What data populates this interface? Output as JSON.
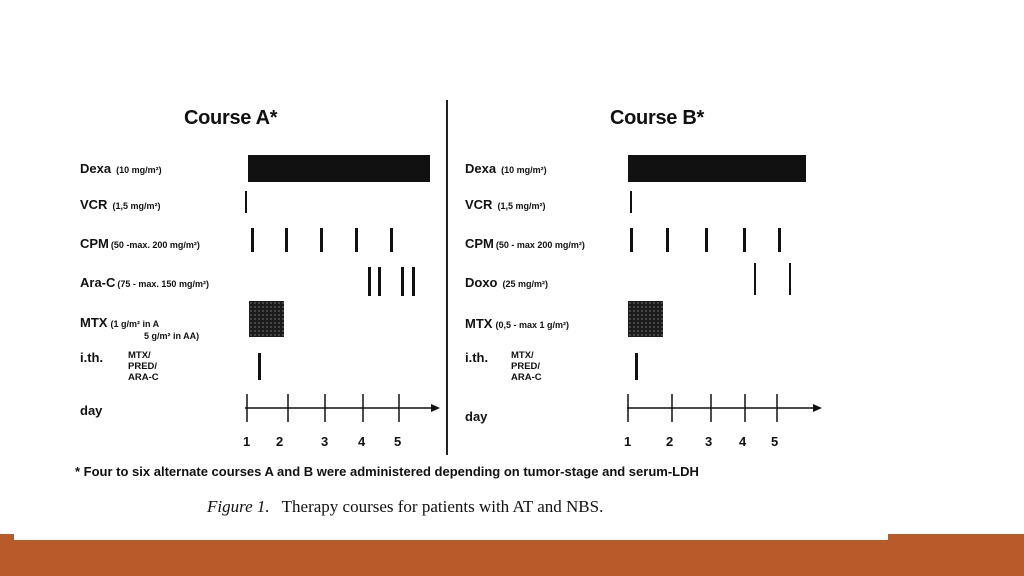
{
  "figure": {
    "footnote": "* Four to six alternate courses A and B were administered depending on tumor-stage and serum-LDH",
    "caption_label": "Figure 1.",
    "caption_text": "Therapy courses for patients with AT and NBS.",
    "day_label": "day",
    "day_ticks": [
      "1",
      "2",
      "3",
      "4",
      "5"
    ]
  },
  "course_a": {
    "title": "Course A*",
    "rows": [
      {
        "name": "Dexa",
        "dose": "(10 mg/m²)"
      },
      {
        "name": "VCR",
        "dose": "(1,5 mg/m²)"
      },
      {
        "name": "CPM",
        "dose": "(50 -max. 200 mg/m²)"
      },
      {
        "name": "Ara-C",
        "dose": "(75 - max. 150 mg/m²)"
      },
      {
        "name": "MTX",
        "dose": "(1 g/m² in A",
        "dose2": "5 g/m² in AA)"
      },
      {
        "name": "i.th.",
        "lines": [
          "MTX/",
          "PRED/",
          "ARA-C"
        ]
      }
    ]
  },
  "course_b": {
    "title": "Course B*",
    "rows": [
      {
        "name": "Dexa",
        "dose": "(10 mg/m²)"
      },
      {
        "name": "VCR",
        "dose": "(1,5 mg/m²)"
      },
      {
        "name": "CPM",
        "dose": "(50 - max 200 mg/m²)"
      },
      {
        "name": "Doxo",
        "dose": "(25 mg/m²)"
      },
      {
        "name": "MTX",
        "dose": "(0,5 - max 1 g/m²)"
      },
      {
        "name": "i.th.",
        "lines": [
          "MTX/",
          "PRED/",
          "ARA-C"
        ]
      }
    ]
  }
}
